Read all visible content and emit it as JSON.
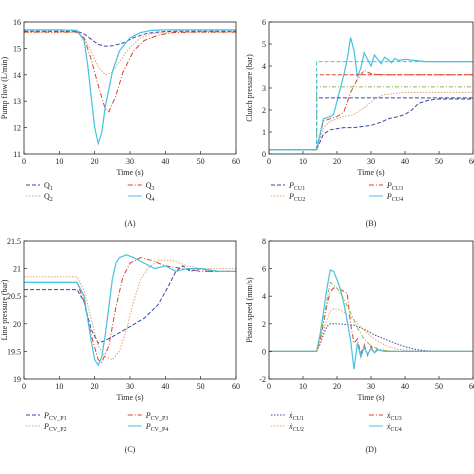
{
  "colors": {
    "s1": "#3a46a8",
    "s2": "#e6a06a",
    "s3": "#d8402f",
    "s4": "#44c2e0",
    "s_green": "#8ab84a",
    "axis": "#222222"
  },
  "chart_data": [
    {
      "type": "line",
      "panel_label": "(A)",
      "xlabel": "Time (s)",
      "ylabel": "Pump flow (L/min)",
      "xlim": [
        0,
        60
      ],
      "ylim": [
        11,
        16
      ],
      "xticks": [
        "0",
        "10",
        "20",
        "30",
        "40",
        "50",
        "60"
      ],
      "yticks": [
        "11",
        "12",
        "13",
        "14",
        "15",
        "16"
      ],
      "series": [
        {
          "name": "Q1",
          "label_main": "Q",
          "label_sub": "1",
          "color_key": "s1",
          "dash": "4,2",
          "x": [
            0,
            5,
            10,
            15,
            17,
            19,
            21,
            23,
            25,
            28,
            31,
            35,
            40,
            45,
            50,
            55,
            60
          ],
          "y": [
            15.65,
            15.65,
            15.65,
            15.65,
            15.55,
            15.35,
            15.15,
            15.08,
            15.1,
            15.2,
            15.4,
            15.58,
            15.64,
            15.65,
            15.65,
            15.65,
            15.65
          ]
        },
        {
          "name": "Q2",
          "label_main": "Q",
          "label_sub": "2",
          "color_key": "s2",
          "dash": "1.5,1.5",
          "x": [
            0,
            5,
            10,
            15,
            17,
            19,
            21,
            23,
            25,
            27,
            30,
            33,
            36,
            40,
            45,
            50,
            55,
            60
          ],
          "y": [
            15.6,
            15.6,
            15.6,
            15.6,
            15.4,
            14.9,
            14.3,
            14.0,
            14.1,
            14.5,
            15.05,
            15.4,
            15.55,
            15.6,
            15.6,
            15.6,
            15.6,
            15.6
          ]
        },
        {
          "name": "Q3",
          "label_main": "Q",
          "label_sub": "3",
          "color_key": "s3",
          "dash": "5,2,1,2",
          "x": [
            0,
            5,
            10,
            15,
            17,
            19,
            21,
            23,
            24,
            26,
            28,
            31,
            34,
            38,
            42,
            48,
            55,
            60
          ],
          "y": [
            15.62,
            15.62,
            15.62,
            15.62,
            15.4,
            14.6,
            13.6,
            12.7,
            12.6,
            13.2,
            14.1,
            14.9,
            15.3,
            15.5,
            15.6,
            15.62,
            15.62,
            15.62
          ]
        },
        {
          "name": "Q4",
          "label_main": "Q",
          "label_sub": "4",
          "color_key": "s4",
          "dash": "",
          "x": [
            0,
            5,
            10,
            15,
            17,
            18,
            19,
            20,
            21,
            22,
            23,
            25,
            27,
            30,
            33,
            36,
            40,
            45,
            50,
            55,
            60
          ],
          "y": [
            15.7,
            15.7,
            15.7,
            15.68,
            15.3,
            14.4,
            13.2,
            12.0,
            11.4,
            11.8,
            12.8,
            14.1,
            14.9,
            15.4,
            15.6,
            15.68,
            15.7,
            15.7,
            15.7,
            15.7,
            15.7
          ]
        }
      ]
    },
    {
      "type": "line",
      "panel_label": "(B)",
      "xlabel": "Time (s)",
      "ylabel": "Clutch pressure (bar)",
      "xlim": [
        0,
        60
      ],
      "ylim": [
        0,
        6
      ],
      "xticks": [
        "0",
        "10",
        "20",
        "30",
        "40",
        "50",
        "60"
      ],
      "yticks": [
        "0",
        "1",
        "2",
        "3",
        "4",
        "5",
        "6"
      ],
      "series": [
        {
          "name": "PCU1",
          "label_main": "P",
          "label_sub": "CU1",
          "color_key": "s1",
          "dash": "4,2",
          "x": [
            0,
            5,
            10,
            14,
            16,
            18,
            20,
            22,
            25,
            30,
            33,
            35,
            38,
            40,
            42,
            44,
            47,
            50,
            55,
            60
          ],
          "y": [
            0.2,
            0.2,
            0.2,
            0.2,
            0.9,
            1.1,
            1.15,
            1.2,
            1.2,
            1.3,
            1.45,
            1.6,
            1.7,
            1.8,
            2.0,
            2.3,
            2.45,
            2.5,
            2.5,
            2.5
          ]
        },
        {
          "name": "PCU2",
          "label_main": "P",
          "label_sub": "CU2",
          "color_key": "s2",
          "dash": "1.5,1.5",
          "x": [
            0,
            5,
            10,
            14,
            16,
            18,
            20,
            22,
            25,
            28,
            31,
            34,
            37,
            40,
            45,
            50,
            55,
            60
          ],
          "y": [
            0.2,
            0.2,
            0.2,
            0.2,
            1.2,
            1.5,
            1.6,
            1.7,
            1.8,
            2.1,
            2.5,
            2.7,
            2.75,
            2.8,
            2.8,
            2.8,
            2.8,
            2.8
          ]
        },
        {
          "name": "PCU3",
          "label_main": "P",
          "label_sub": "CU3",
          "color_key": "s3",
          "dash": "5,2,1,2",
          "x": [
            0,
            5,
            10,
            14,
            16,
            18,
            20,
            22,
            24,
            26,
            28,
            30,
            33,
            36,
            40,
            45,
            50,
            55,
            60
          ],
          "y": [
            0.2,
            0.2,
            0.2,
            0.2,
            1.5,
            1.6,
            1.7,
            1.9,
            2.8,
            3.4,
            3.8,
            3.65,
            3.6,
            3.6,
            3.6,
            3.6,
            3.6,
            3.6,
            3.6
          ]
        },
        {
          "name": "PCU4",
          "label_main": "P",
          "label_sub": "CU4",
          "color_key": "s4",
          "dash": "",
          "x": [
            0,
            5,
            10,
            14,
            16,
            18,
            19,
            20,
            21,
            22,
            23,
            24,
            25,
            26,
            27,
            28,
            29,
            30,
            31,
            32,
            33,
            34,
            35,
            36,
            37,
            38,
            40,
            43,
            46,
            50,
            55,
            60
          ],
          "y": [
            0.2,
            0.2,
            0.2,
            0.2,
            1.6,
            1.7,
            1.8,
            2.4,
            3.0,
            3.6,
            4.3,
            5.3,
            4.7,
            3.5,
            3.9,
            4.6,
            4.3,
            4.0,
            4.5,
            4.3,
            4.1,
            4.4,
            4.3,
            4.15,
            4.35,
            4.25,
            4.3,
            4.25,
            4.2,
            4.2,
            4.2,
            4.2
          ]
        },
        {
          "name": "",
          "color_key": "s1",
          "dash": "4,2",
          "step": true,
          "x": [
            0,
            14,
            14,
            60
          ],
          "y": [
            0.18,
            0.18,
            2.55,
            2.55
          ]
        },
        {
          "name": "",
          "color_key": "s_green",
          "dash": "4,2,1,2",
          "step": true,
          "x": [
            0,
            14,
            14,
            60
          ],
          "y": [
            0.18,
            0.18,
            3.05,
            3.05
          ]
        },
        {
          "name": "",
          "color_key": "s3",
          "dash": "4,2",
          "step": true,
          "x": [
            0,
            14,
            14,
            60
          ],
          "y": [
            0.18,
            0.18,
            3.6,
            3.6
          ]
        },
        {
          "name": "",
          "color_key": "s4",
          "dash": "4,2",
          "step": true,
          "x": [
            0,
            14,
            14,
            60
          ],
          "y": [
            0.18,
            0.18,
            4.2,
            4.2
          ]
        }
      ]
    },
    {
      "type": "line",
      "panel_label": "(C)",
      "xlabel": "Time (s)",
      "ylabel": "Line pressure (bar)",
      "xlim": [
        0,
        60
      ],
      "ylim": [
        19,
        21.5
      ],
      "xticks": [
        "0",
        "10",
        "20",
        "30",
        "40",
        "50",
        "60"
      ],
      "yticks": [
        "19",
        "19.5",
        "20",
        "20.5",
        "21",
        "21.5"
      ],
      "series": [
        {
          "name": "PCV_P1",
          "label_main": "P",
          "label_sub": "CV_P1",
          "color_key": "s1",
          "dash": "4,2",
          "x": [
            0,
            5,
            10,
            15,
            17,
            19,
            21,
            23,
            26,
            30,
            34,
            38,
            41,
            43,
            45,
            47,
            50,
            53,
            56,
            60
          ],
          "y": [
            20.62,
            20.62,
            20.62,
            20.62,
            20.4,
            19.9,
            19.65,
            19.7,
            19.8,
            19.95,
            20.1,
            20.35,
            20.7,
            20.95,
            21.05,
            20.95,
            21.0,
            20.95,
            20.95,
            20.95
          ]
        },
        {
          "name": "PCV_P2",
          "label_main": "P",
          "label_sub": "CV_P2",
          "color_key": "s2",
          "dash": "1.5,1.5",
          "x": [
            0,
            5,
            10,
            15,
            17,
            19,
            21,
            23,
            25,
            27,
            29,
            31,
            33,
            35,
            38,
            42,
            46,
            50,
            55,
            60
          ],
          "y": [
            20.85,
            20.85,
            20.85,
            20.85,
            20.6,
            20.1,
            19.6,
            19.4,
            19.35,
            19.5,
            19.9,
            20.4,
            20.8,
            21.0,
            21.15,
            21.15,
            21.05,
            21.0,
            21.0,
            21.0
          ]
        },
        {
          "name": "PCV_P3",
          "label_main": "P",
          "label_sub": "CV_P3",
          "color_key": "s3",
          "dash": "5,2,1,2",
          "x": [
            0,
            5,
            10,
            15,
            17,
            19,
            21,
            22,
            24,
            26,
            28,
            30,
            33,
            36,
            40,
            45,
            50,
            55,
            60
          ],
          "y": [
            20.75,
            20.75,
            20.75,
            20.75,
            20.4,
            19.8,
            19.35,
            19.3,
            19.6,
            20.3,
            20.85,
            21.1,
            21.2,
            21.15,
            21.05,
            21.0,
            20.95,
            20.95,
            20.95
          ]
        },
        {
          "name": "PCV_P4",
          "label_main": "P",
          "label_sub": "CV_P4",
          "color_key": "s4",
          "dash": "",
          "x": [
            0,
            5,
            10,
            15,
            17,
            18,
            19,
            20,
            21,
            22,
            23,
            24,
            25,
            26,
            27,
            29,
            31,
            34,
            37,
            40,
            43,
            46,
            50,
            55,
            60
          ],
          "y": [
            20.75,
            20.75,
            20.75,
            20.75,
            20.5,
            20.1,
            19.7,
            19.35,
            19.25,
            19.4,
            19.8,
            20.3,
            20.8,
            21.1,
            21.2,
            21.25,
            21.2,
            21.1,
            21.0,
            21.05,
            20.95,
            21.0,
            21.0,
            20.95,
            20.95
          ]
        }
      ]
    },
    {
      "type": "line",
      "panel_label": "(D)",
      "xlabel": "Time (s)",
      "ylabel": "Piston speed (mm/s)",
      "xlim": [
        0,
        60
      ],
      "ylim": [
        -2,
        8
      ],
      "xticks": [
        "0",
        "10",
        "20",
        "30",
        "40",
        "50",
        "60"
      ],
      "yticks": [
        "-2",
        "0",
        "2",
        "4",
        "6",
        "8"
      ],
      "series": [
        {
          "name": "xCU1",
          "label_main": "ẋ",
          "label_sub": "CU1",
          "color_key": "s1",
          "dash": "1.5,1.5",
          "x": [
            0,
            10,
            14,
            15,
            16,
            17,
            18,
            20,
            25,
            28,
            31,
            34,
            37,
            40,
            43,
            46,
            50,
            55,
            60
          ],
          "y": [
            0,
            0,
            0,
            0.5,
            1.2,
            1.8,
            2.0,
            2.0,
            1.9,
            1.6,
            1.2,
            0.9,
            0.6,
            0.35,
            0.15,
            0.05,
            0,
            0,
            0
          ]
        },
        {
          "name": "xCU2",
          "label_main": "ẋ",
          "label_sub": "CU2",
          "color_key": "s2",
          "dash": "1.5,1.5",
          "x": [
            0,
            10,
            14,
            15,
            16,
            17,
            18,
            19,
            21,
            23,
            25,
            27,
            29,
            31,
            33,
            35,
            38,
            42,
            46,
            50,
            55,
            60
          ],
          "y": [
            0,
            0,
            0,
            0.6,
            1.5,
            2.3,
            2.9,
            3.1,
            3.0,
            2.7,
            2.3,
            1.8,
            1.3,
            0.9,
            0.6,
            0.35,
            0.15,
            0.05,
            0,
            0,
            0,
            0
          ]
        },
        {
          "name": "xCU3",
          "label_main": "ẋ",
          "label_sub": "CU3",
          "color_key": "s3",
          "dash": "5,2,1,2",
          "x": [
            0,
            10,
            14,
            15,
            16,
            17,
            18,
            19,
            21,
            23,
            24,
            25,
            26,
            27,
            28,
            29,
            30,
            31,
            32,
            34,
            37,
            40,
            45,
            50,
            55,
            60
          ],
          "y": [
            0,
            0,
            0,
            0.8,
            2.0,
            3.3,
            4.3,
            4.6,
            4.5,
            4.2,
            2.0,
            0.6,
            0.9,
            -0.2,
            0.5,
            -0.3,
            0.4,
            -0.1,
            0.2,
            0.05,
            0,
            0,
            0,
            0,
            0,
            0
          ]
        },
        {
          "name": "xCU4",
          "label_main": "ẋ",
          "label_sub": "CU4",
          "color_key": "s4",
          "dash": "",
          "x": [
            0,
            10,
            14,
            15,
            16,
            17,
            18,
            19,
            20,
            21,
            22,
            23,
            24,
            25,
            26,
            27,
            28,
            29,
            30,
            31,
            32,
            34,
            37,
            40,
            45,
            50,
            55,
            60
          ],
          "y": [
            0,
            0,
            0,
            1.2,
            2.8,
            4.5,
            5.9,
            5.8,
            5.2,
            4.5,
            3.5,
            2.2,
            0.8,
            -1.3,
            0.6,
            -0.4,
            0.3,
            -0.2,
            0.2,
            -0.1,
            0.1,
            0,
            0,
            0,
            0,
            0,
            0,
            0
          ]
        },
        {
          "name": "",
          "color_key": "s_green",
          "dash": "4,2,1,2",
          "x": [
            0,
            10,
            14,
            15,
            16,
            17,
            18,
            20,
            22,
            24,
            26,
            28,
            30,
            33,
            36,
            40,
            45,
            50,
            55,
            60
          ],
          "y": [
            0,
            0,
            0,
            0.9,
            2.2,
            3.6,
            5.0,
            4.6,
            3.8,
            2.8,
            1.7,
            0.9,
            0.4,
            0.1,
            0,
            0,
            0,
            0,
            0,
            0
          ]
        }
      ]
    }
  ]
}
